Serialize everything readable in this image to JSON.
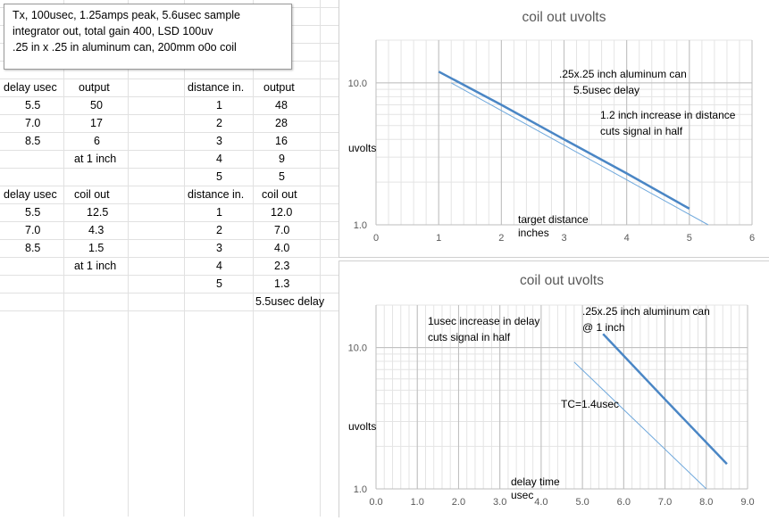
{
  "note": {
    "lines": [
      "Tx, 100usec, 1.25amps peak, 5.6usec sample",
      "integrator out, total gain 400, LSD 100uv",
      ".25 in x .25 in aluminum can, 200mm o0o coil"
    ]
  },
  "table_delay_output": {
    "headers": [
      "delay usec",
      "output"
    ],
    "rows": [
      [
        "5.5",
        "50"
      ],
      [
        "7.0",
        "17"
      ],
      [
        "8.5",
        "6"
      ]
    ],
    "footnote": "at 1 inch"
  },
  "table_distance_output": {
    "headers": [
      "distance in.",
      "output"
    ],
    "rows": [
      [
        "1",
        "48"
      ],
      [
        "2",
        "28"
      ],
      [
        "3",
        "16"
      ],
      [
        "4",
        "9"
      ],
      [
        "5",
        "5"
      ]
    ]
  },
  "table_delay_coil": {
    "headers": [
      "delay usec",
      "coil out"
    ],
    "rows": [
      [
        "5.5",
        "12.5"
      ],
      [
        "7.0",
        "4.3"
      ],
      [
        "8.5",
        "1.5"
      ]
    ],
    "footnote": "at 1 inch"
  },
  "table_distance_coil": {
    "headers": [
      "distance in.",
      "coil out"
    ],
    "rows": [
      [
        "1",
        "12.0"
      ],
      [
        "2",
        "7.0"
      ],
      [
        "3",
        "4.0"
      ],
      [
        "4",
        "2.3"
      ],
      [
        "5",
        "1.3"
      ]
    ],
    "footnote": "5.5usec delay"
  },
  "chart_data": [
    {
      "type": "line",
      "title": "coil out uvolts",
      "xlabel": "target distance\ninches",
      "ylabel": "uvolts",
      "yscale": "log",
      "xlim": [
        0,
        6
      ],
      "ylim": [
        1,
        20
      ],
      "xticks": [
        "0",
        "1",
        "2",
        "3",
        "4",
        "5",
        "6"
      ],
      "yticks": [
        "10.0",
        "1.0"
      ],
      "series": [
        {
          "color": "#4a86c5",
          "x": [
            1,
            2,
            3,
            4,
            5
          ],
          "y": [
            12.0,
            7.0,
            4.0,
            2.3,
            1.3
          ]
        },
        {
          "color": "#6fa8dc",
          "x": [
            1.2,
            5.3
          ],
          "y": [
            10.0,
            1.0
          ]
        }
      ],
      "annotations": [
        "  .25x.25 inch aluminum can\n5.5usec delay",
        "1.2 inch increase in distance\ncuts signal in half"
      ],
      "grid": true
    },
    {
      "type": "line",
      "title": "coil out uvolts",
      "xlabel": "delay time\nusec",
      "ylabel": "uvolts",
      "yscale": "log",
      "xlim": [
        0,
        9
      ],
      "ylim": [
        1,
        20
      ],
      "xticks": [
        "0.0",
        "1.0",
        "2.0",
        "3.0",
        "4.0",
        "5.0",
        "6.0",
        "7.0",
        "8.0",
        "9.0"
      ],
      "yticks": [
        "10.0",
        "1.0"
      ],
      "series": [
        {
          "color": "#4a86c5",
          "x": [
            5.5,
            7.0,
            8.5
          ],
          "y": [
            12.5,
            4.3,
            1.5
          ]
        },
        {
          "color": "#6fa8dc",
          "x": [
            4.8,
            8.0
          ],
          "y": [
            7.9,
            1.0
          ]
        }
      ],
      "annotations": [
        "1usec increase in delay\ncuts signal in half",
        ".25x.25 inch aluminum can\n@ 1 inch",
        "TC=1.4usec"
      ],
      "grid": true
    }
  ]
}
